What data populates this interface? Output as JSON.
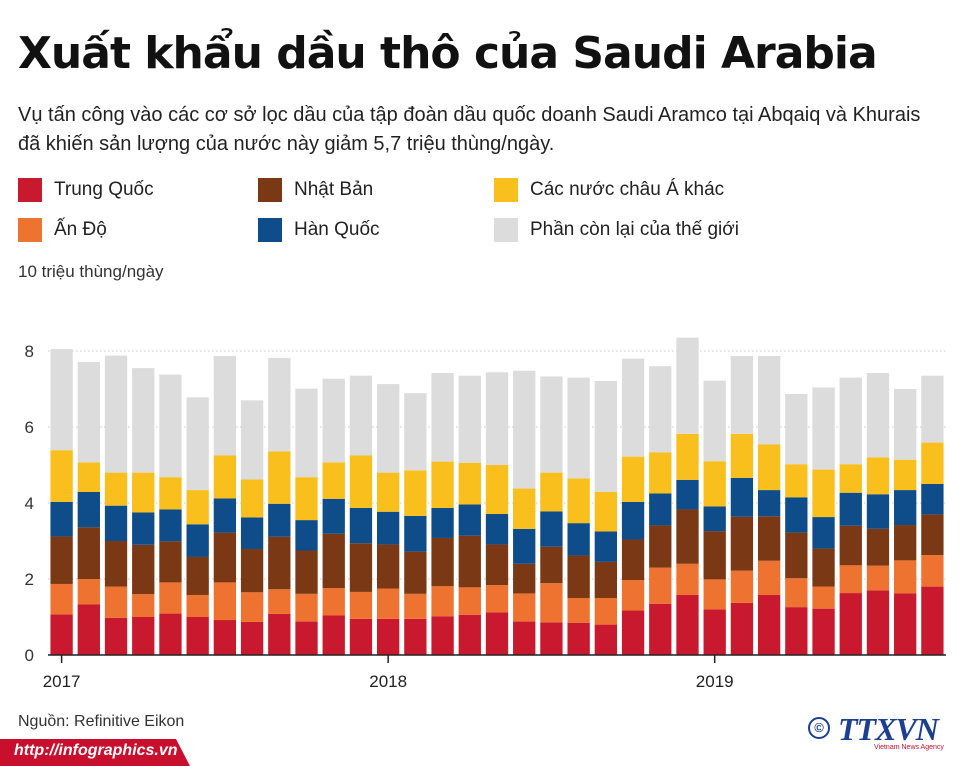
{
  "title": "Xuất khẩu dầu thô của Saudi Arabia",
  "subtitle": "Vụ tấn công vào các cơ sở lọc dầu của tập đoàn dầu quốc doanh Saudi Aramco tại Abqaiq và Khurais đã khiến sản lượng của nước này giảm 5,7 triệu thùng/ngày.",
  "source": "Nguồn: Refinitive Eikon",
  "footer": {
    "url": "http://infographics.vn"
  },
  "logo": {
    "copyright_symbol": "©",
    "name": "TTXVN",
    "tagline": "Vietnam News Agency"
  },
  "colors": {
    "china": "#c8192e",
    "japan": "#7b3814",
    "other_asia": "#f9bf1c",
    "india": "#ef7330",
    "korea": "#0f4c8a",
    "rest": "#dcdcdc"
  },
  "chart_data": {
    "type": "bar",
    "stacked": true,
    "title": "Xuất khẩu dầu thô của Saudi Arabia",
    "ylabel": "10 triệu thùng/ngày",
    "ylim": [
      0,
      8
    ],
    "yticks": [
      0,
      2,
      4,
      6,
      8
    ],
    "xticks": [
      "2017",
      "2018",
      "2019"
    ],
    "xtick_bar_index": [
      0,
      12,
      24
    ],
    "grid": true,
    "legend_position": "top",
    "categories": [
      "01/2017",
      "02/2017",
      "03/2017",
      "04/2017",
      "05/2017",
      "06/2017",
      "07/2017",
      "08/2017",
      "09/2017",
      "10/2017",
      "11/2017",
      "12/2017",
      "01/2018",
      "02/2018",
      "03/2018",
      "04/2018",
      "05/2018",
      "06/2018",
      "07/2018",
      "08/2018",
      "09/2018",
      "10/2018",
      "11/2018",
      "12/2018",
      "01/2019",
      "02/2019",
      "03/2019",
      "04/2019",
      "05/2019",
      "06/2019",
      "07/2019",
      "08/2019",
      "09/2019"
    ],
    "series": [
      {
        "name": "Trung Quốc",
        "color_key": "china",
        "values": [
          1.07,
          1.33,
          0.98,
          1.0,
          1.09,
          1.0,
          0.92,
          0.87,
          1.08,
          0.88,
          1.04,
          0.95,
          0.95,
          0.95,
          1.02,
          1.06,
          1.12,
          0.88,
          0.86,
          0.85,
          0.8,
          1.17,
          1.35,
          1.58,
          1.2,
          1.37,
          1.58,
          1.26,
          1.22,
          1.63,
          1.7,
          1.62,
          1.8
        ]
      },
      {
        "name": "Ấn Độ",
        "color_key": "india",
        "values": [
          0.8,
          0.67,
          0.82,
          0.6,
          0.82,
          0.58,
          0.99,
          0.78,
          0.65,
          0.73,
          0.72,
          0.71,
          0.8,
          0.66,
          0.79,
          0.72,
          0.72,
          0.74,
          1.03,
          0.65,
          0.7,
          0.8,
          0.95,
          0.82,
          0.79,
          0.85,
          0.9,
          0.76,
          0.58,
          0.73,
          0.65,
          0.87,
          0.83
        ]
      },
      {
        "name": "Nhật Bản",
        "color_key": "japan",
        "values": [
          1.25,
          1.36,
          1.2,
          1.3,
          1.08,
          1.0,
          1.31,
          1.14,
          1.38,
          1.14,
          1.43,
          1.28,
          1.16,
          1.11,
          1.27,
          1.36,
          1.07,
          0.78,
          0.96,
          1.12,
          0.95,
          1.07,
          1.11,
          1.43,
          1.27,
          1.42,
          1.17,
          1.2,
          1.0,
          1.04,
          0.97,
          0.93,
          1.07
        ]
      },
      {
        "name": "Hàn Quốc",
        "color_key": "korea",
        "values": [
          0.91,
          0.93,
          0.93,
          0.85,
          0.84,
          0.86,
          0.9,
          0.83,
          0.87,
          0.8,
          0.92,
          0.93,
          0.86,
          0.94,
          0.79,
          0.82,
          0.8,
          0.92,
          0.93,
          0.85,
          0.8,
          0.99,
          0.84,
          0.78,
          0.65,
          1.02,
          0.69,
          0.93,
          0.83,
          0.87,
          0.91,
          0.92,
          0.8
        ]
      },
      {
        "name": "Các nước châu Á khác",
        "color_key": "other_asia",
        "values": [
          1.36,
          0.78,
          0.87,
          1.05,
          0.85,
          0.9,
          1.13,
          1.0,
          1.38,
          1.13,
          0.96,
          1.38,
          1.03,
          1.2,
          1.22,
          1.1,
          1.29,
          1.06,
          1.02,
          1.18,
          1.04,
          1.19,
          1.08,
          1.21,
          1.19,
          1.16,
          1.2,
          0.87,
          1.25,
          0.75,
          0.97,
          0.8,
          1.09
        ]
      },
      {
        "name": "Phần còn lại của thế giới",
        "color_key": "rest",
        "values": [
          2.66,
          2.64,
          3.08,
          2.75,
          2.7,
          2.44,
          2.62,
          2.08,
          2.46,
          2.33,
          2.2,
          2.1,
          2.33,
          2.03,
          2.33,
          2.29,
          2.44,
          3.1,
          2.53,
          2.65,
          2.92,
          2.58,
          2.27,
          2.53,
          2.12,
          2.05,
          2.33,
          1.85,
          2.16,
          2.28,
          2.22,
          1.86,
          1.76
        ]
      }
    ]
  }
}
